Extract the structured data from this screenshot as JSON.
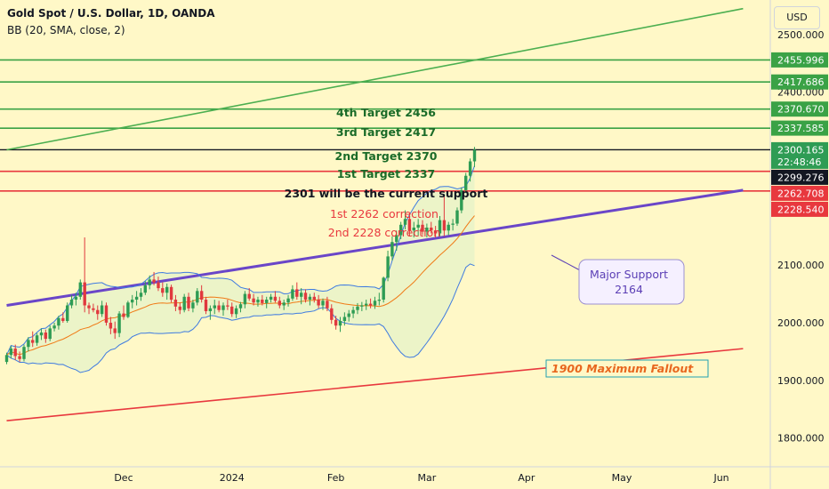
{
  "header": {
    "title": "Gold Spot / U.S. Dollar, 1D, OANDA",
    "indicator": "BB (20, SMA, close, 2)"
  },
  "currency_button": "USD",
  "colors": {
    "background": "#fff8c7",
    "candle_up": "#2e9c54",
    "candle_down": "#e0393e",
    "bb_band": "#3f7be0",
    "bb_basis": "#f07a16",
    "target_line": "#3aa246",
    "correction_line": "#e8383e",
    "support_line": "#6a46c8",
    "annotation_purple": "#5b3fb5",
    "fallout_text": "#e8671f"
  },
  "chart_data": {
    "type": "candlestick",
    "y_axis": {
      "range": [
        1750,
        2560
      ],
      "ticks": [
        1800,
        1900,
        2000,
        2100,
        2200,
        2300,
        2400,
        2500
      ],
      "tick_labels": [
        "1800.000",
        "1900.000",
        "2000.000",
        "2100.000",
        "2200.000",
        "2300.000",
        "2400.000",
        "2500.000"
      ]
    },
    "x_axis": {
      "labels": [
        {
          "label": "Dec",
          "index": 27
        },
        {
          "label": "2024",
          "index": 52
        },
        {
          "label": "Feb",
          "index": 76
        },
        {
          "label": "Mar",
          "index": 97
        },
        {
          "label": "Apr",
          "index": 120
        },
        {
          "label": "May",
          "index": 142
        },
        {
          "label": "Jun",
          "index": 165
        }
      ]
    },
    "price_boxes": [
      {
        "label": "2455.996",
        "value": 2456,
        "type": "green"
      },
      {
        "label": "2417.686",
        "value": 2417.7,
        "type": "green"
      },
      {
        "label": "2370.670",
        "value": 2370.7,
        "type": "green"
      },
      {
        "label": "2337.585",
        "value": 2337.6,
        "type": "green"
      },
      {
        "label": "2300.165",
        "sub": "22:48:46",
        "value": 2300.2,
        "type": "current"
      },
      {
        "label": "2299.276",
        "value": 2299.3,
        "type": "black"
      },
      {
        "label": "2262.708",
        "value": 2262.7,
        "type": "red"
      },
      {
        "label": "2228.540",
        "value": 2228.5,
        "type": "red"
      }
    ],
    "horizontal_lines": [
      {
        "value": 2456,
        "color": "green"
      },
      {
        "value": 2417.7,
        "color": "green"
      },
      {
        "value": 2370.7,
        "color": "green"
      },
      {
        "value": 2337.6,
        "color": "green"
      },
      {
        "value": 2300.2,
        "color": "black"
      },
      {
        "value": 2262.7,
        "color": "red"
      },
      {
        "value": 2228.5,
        "color": "red"
      }
    ],
    "annotations": {
      "target4": "4th Target 2456",
      "target3": "3rd Target 2417",
      "target2": "2nd Target 2370",
      "target1": "1st Target 2337",
      "support_current": "2301 will be the current support",
      "correction1": "1st 2262 correction",
      "correction2": "2nd 2228 correction",
      "major_support_1": "Major Support",
      "major_support_2": "2164",
      "fallout": "1900 Maximum Fallout"
    },
    "trendlines": [
      {
        "name": "upper",
        "color": "green",
        "from": {
          "index": 0,
          "value": 2300
        },
        "to": {
          "index": 170,
          "value": 2545
        }
      },
      {
        "name": "support",
        "color": "purple",
        "from": {
          "index": 0,
          "value": 2030
        },
        "to": {
          "index": 170,
          "value": 2230
        }
      },
      {
        "name": "fallout",
        "color": "red",
        "from": {
          "index": 0,
          "value": 1830
        },
        "to": {
          "index": 170,
          "value": 1955
        }
      }
    ],
    "candles": [
      {
        "o": 1932,
        "h": 1948,
        "l": 1928,
        "c": 1944
      },
      {
        "o": 1944,
        "h": 1960,
        "l": 1938,
        "c": 1955
      },
      {
        "o": 1955,
        "h": 1962,
        "l": 1935,
        "c": 1942
      },
      {
        "o": 1942,
        "h": 1950,
        "l": 1932,
        "c": 1937
      },
      {
        "o": 1937,
        "h": 1962,
        "l": 1933,
        "c": 1958
      },
      {
        "o": 1958,
        "h": 1975,
        "l": 1950,
        "c": 1970
      },
      {
        "o": 1970,
        "h": 1985,
        "l": 1958,
        "c": 1965
      },
      {
        "o": 1965,
        "h": 1982,
        "l": 1960,
        "c": 1978
      },
      {
        "o": 1978,
        "h": 1990,
        "l": 1970,
        "c": 1983
      },
      {
        "o": 1983,
        "h": 1988,
        "l": 1965,
        "c": 1972
      },
      {
        "o": 1972,
        "h": 1995,
        "l": 1968,
        "c": 1990
      },
      {
        "o": 1990,
        "h": 2000,
        "l": 1985,
        "c": 1995
      },
      {
        "o": 1995,
        "h": 2012,
        "l": 1988,
        "c": 2008
      },
      {
        "o": 2008,
        "h": 2018,
        "l": 2000,
        "c": 2003
      },
      {
        "o": 2003,
        "h": 2035,
        "l": 2000,
        "c": 2030
      },
      {
        "o": 2030,
        "h": 2048,
        "l": 2025,
        "c": 2040
      },
      {
        "o": 2040,
        "h": 2052,
        "l": 2030,
        "c": 2045
      },
      {
        "o": 2045,
        "h": 2075,
        "l": 2040,
        "c": 2070
      },
      {
        "o": 2070,
        "h": 2148,
        "l": 2018,
        "c": 2030
      },
      {
        "o": 2030,
        "h": 2035,
        "l": 2015,
        "c": 2025
      },
      {
        "o": 2025,
        "h": 2033,
        "l": 2018,
        "c": 2022
      },
      {
        "o": 2022,
        "h": 2030,
        "l": 2005,
        "c": 2015
      },
      {
        "o": 2015,
        "h": 2038,
        "l": 2010,
        "c": 2030
      },
      {
        "o": 2030,
        "h": 2035,
        "l": 1995,
        "c": 2000
      },
      {
        "o": 2000,
        "h": 2010,
        "l": 1980,
        "c": 1990
      },
      {
        "o": 1990,
        "h": 2002,
        "l": 1972,
        "c": 1982
      },
      {
        "o": 1982,
        "h": 2020,
        "l": 1975,
        "c": 2016
      },
      {
        "o": 2016,
        "h": 2030,
        "l": 2005,
        "c": 2010
      },
      {
        "o": 2010,
        "h": 2038,
        "l": 2008,
        "c": 2035
      },
      {
        "o": 2035,
        "h": 2048,
        "l": 2025,
        "c": 2040
      },
      {
        "o": 2040,
        "h": 2055,
        "l": 2030,
        "c": 2045
      },
      {
        "o": 2045,
        "h": 2060,
        "l": 2038,
        "c": 2052
      },
      {
        "o": 2052,
        "h": 2072,
        "l": 2048,
        "c": 2065
      },
      {
        "o": 2065,
        "h": 2082,
        "l": 2058,
        "c": 2075
      },
      {
        "o": 2075,
        "h": 2088,
        "l": 2065,
        "c": 2070
      },
      {
        "o": 2070,
        "h": 2080,
        "l": 2055,
        "c": 2060
      },
      {
        "o": 2060,
        "h": 2070,
        "l": 2045,
        "c": 2052
      },
      {
        "o": 2052,
        "h": 2068,
        "l": 2040,
        "c": 2062
      },
      {
        "o": 2062,
        "h": 2066,
        "l": 2035,
        "c": 2040
      },
      {
        "o": 2040,
        "h": 2048,
        "l": 2020,
        "c": 2028
      },
      {
        "o": 2028,
        "h": 2035,
        "l": 2015,
        "c": 2022
      },
      {
        "o": 2022,
        "h": 2050,
        "l": 2018,
        "c": 2045
      },
      {
        "o": 2045,
        "h": 2052,
        "l": 2020,
        "c": 2025
      },
      {
        "o": 2025,
        "h": 2040,
        "l": 2018,
        "c": 2035
      },
      {
        "o": 2035,
        "h": 2060,
        "l": 2030,
        "c": 2055
      },
      {
        "o": 2055,
        "h": 2065,
        "l": 2035,
        "c": 2040
      },
      {
        "o": 2040,
        "h": 2045,
        "l": 2015,
        "c": 2020
      },
      {
        "o": 2020,
        "h": 2030,
        "l": 2005,
        "c": 2025
      },
      {
        "o": 2025,
        "h": 2040,
        "l": 2015,
        "c": 2030
      },
      {
        "o": 2030,
        "h": 2038,
        "l": 2018,
        "c": 2022
      },
      {
        "o": 2022,
        "h": 2035,
        "l": 2012,
        "c": 2030
      },
      {
        "o": 2030,
        "h": 2040,
        "l": 2022,
        "c": 2028
      },
      {
        "o": 2028,
        "h": 2035,
        "l": 2010,
        "c": 2015
      },
      {
        "o": 2015,
        "h": 2030,
        "l": 2008,
        "c": 2025
      },
      {
        "o": 2025,
        "h": 2036,
        "l": 2018,
        "c": 2032
      },
      {
        "o": 2032,
        "h": 2055,
        "l": 2025,
        "c": 2050
      },
      {
        "o": 2050,
        "h": 2060,
        "l": 2038,
        "c": 2042
      },
      {
        "o": 2042,
        "h": 2050,
        "l": 2030,
        "c": 2035
      },
      {
        "o": 2035,
        "h": 2045,
        "l": 2028,
        "c": 2040
      },
      {
        "o": 2040,
        "h": 2048,
        "l": 2030,
        "c": 2034
      },
      {
        "o": 2034,
        "h": 2045,
        "l": 2025,
        "c": 2040
      },
      {
        "o": 2040,
        "h": 2050,
        "l": 2035,
        "c": 2045
      },
      {
        "o": 2045,
        "h": 2055,
        "l": 2035,
        "c": 2038
      },
      {
        "o": 2038,
        "h": 2045,
        "l": 2025,
        "c": 2030
      },
      {
        "o": 2030,
        "h": 2040,
        "l": 2022,
        "c": 2035
      },
      {
        "o": 2035,
        "h": 2048,
        "l": 2028,
        "c": 2042
      },
      {
        "o": 2042,
        "h": 2065,
        "l": 2038,
        "c": 2058
      },
      {
        "o": 2058,
        "h": 2070,
        "l": 2040,
        "c": 2045
      },
      {
        "o": 2045,
        "h": 2060,
        "l": 2032,
        "c": 2052
      },
      {
        "o": 2052,
        "h": 2058,
        "l": 2035,
        "c": 2040
      },
      {
        "o": 2040,
        "h": 2050,
        "l": 2030,
        "c": 2045
      },
      {
        "o": 2045,
        "h": 2052,
        "l": 2035,
        "c": 2040
      },
      {
        "o": 2040,
        "h": 2048,
        "l": 2025,
        "c": 2030
      },
      {
        "o": 2030,
        "h": 2042,
        "l": 2022,
        "c": 2038
      },
      {
        "o": 2038,
        "h": 2045,
        "l": 2020,
        "c": 2025
      },
      {
        "o": 2025,
        "h": 2032,
        "l": 1998,
        "c": 2005
      },
      {
        "o": 2005,
        "h": 2012,
        "l": 1988,
        "c": 1995
      },
      {
        "o": 1995,
        "h": 2010,
        "l": 1984,
        "c": 2003
      },
      {
        "o": 2003,
        "h": 2018,
        "l": 1995,
        "c": 2010
      },
      {
        "o": 2010,
        "h": 2022,
        "l": 2002,
        "c": 2016
      },
      {
        "o": 2016,
        "h": 2028,
        "l": 2008,
        "c": 2022
      },
      {
        "o": 2022,
        "h": 2034,
        "l": 2015,
        "c": 2028
      },
      {
        "o": 2028,
        "h": 2036,
        "l": 2020,
        "c": 2030
      },
      {
        "o": 2030,
        "h": 2040,
        "l": 2022,
        "c": 2033
      },
      {
        "o": 2033,
        "h": 2042,
        "l": 2025,
        "c": 2030
      },
      {
        "o": 2030,
        "h": 2045,
        "l": 2024,
        "c": 2038
      },
      {
        "o": 2038,
        "h": 2052,
        "l": 2030,
        "c": 2040
      },
      {
        "o": 2040,
        "h": 2080,
        "l": 2035,
        "c": 2078
      },
      {
        "o": 2078,
        "h": 2125,
        "l": 2072,
        "c": 2115
      },
      {
        "o": 2115,
        "h": 2150,
        "l": 2108,
        "c": 2140
      },
      {
        "o": 2140,
        "h": 2160,
        "l": 2125,
        "c": 2152
      },
      {
        "o": 2152,
        "h": 2175,
        "l": 2145,
        "c": 2170
      },
      {
        "o": 2170,
        "h": 2195,
        "l": 2162,
        "c": 2180
      },
      {
        "o": 2180,
        "h": 2190,
        "l": 2150,
        "c": 2160
      },
      {
        "o": 2160,
        "h": 2175,
        "l": 2148,
        "c": 2165
      },
      {
        "o": 2165,
        "h": 2180,
        "l": 2150,
        "c": 2170
      },
      {
        "o": 2170,
        "h": 2178,
        "l": 2152,
        "c": 2158
      },
      {
        "o": 2158,
        "h": 2172,
        "l": 2148,
        "c": 2165
      },
      {
        "o": 2165,
        "h": 2175,
        "l": 2155,
        "c": 2160
      },
      {
        "o": 2160,
        "h": 2168,
        "l": 2148,
        "c": 2155
      },
      {
        "o": 2155,
        "h": 2185,
        "l": 2150,
        "c": 2178
      },
      {
        "o": 2178,
        "h": 2222,
        "l": 2150,
        "c": 2160
      },
      {
        "o": 2160,
        "h": 2175,
        "l": 2152,
        "c": 2170
      },
      {
        "o": 2170,
        "h": 2180,
        "l": 2160,
        "c": 2172
      },
      {
        "o": 2172,
        "h": 2200,
        "l": 2168,
        "c": 2195
      },
      {
        "o": 2195,
        "h": 2235,
        "l": 2190,
        "c": 2230
      },
      {
        "o": 2230,
        "h": 2260,
        "l": 2225,
        "c": 2255
      },
      {
        "o": 2255,
        "h": 2285,
        "l": 2245,
        "c": 2280
      },
      {
        "o": 2280,
        "h": 2305,
        "l": 2270,
        "c": 2300
      }
    ]
  }
}
